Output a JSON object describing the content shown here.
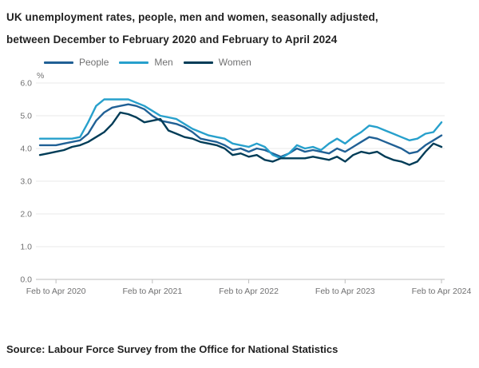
{
  "header": {
    "title_line1": "UK unemployment rates, people, men and women, seasonally adjusted,",
    "title_line2": "between December to February 2020 and February to April 2024"
  },
  "chart_data": {
    "type": "line",
    "title": "UK unemployment rates, people, men and women, seasonally adjusted, between December to February 2020 and February to April 2024",
    "ylabel": "%",
    "ylim": [
      0.0,
      6.0
    ],
    "yticks": [
      "0.0",
      "1.0",
      "2.0",
      "3.0",
      "4.0",
      "5.0",
      "6.0"
    ],
    "grid": "horizontal",
    "legend_position": "top",
    "x_description": "51 rolling three-month periods, monthly steps, from Dec to Feb 2020 through Feb to Apr 2024",
    "x_first_period": "Dec to Feb 2020",
    "x_last_period": "Feb to Apr 2024",
    "x_tick_labels": [
      "Feb to Apr 2020",
      "Feb to Apr 2021",
      "Feb to Apr 2022",
      "Feb to Apr 2023",
      "Feb to Apr 2024"
    ],
    "x_tick_indices": [
      2,
      14,
      26,
      38,
      50
    ],
    "series": [
      {
        "name": "People",
        "color": "#206095",
        "values": [
          4.1,
          4.1,
          4.1,
          4.15,
          4.2,
          4.25,
          4.45,
          4.85,
          5.1,
          5.25,
          5.3,
          5.35,
          5.3,
          5.2,
          5.0,
          4.85,
          4.8,
          4.75,
          4.65,
          4.5,
          4.3,
          4.25,
          4.2,
          4.1,
          3.95,
          4.0,
          3.9,
          4.0,
          3.95,
          3.85,
          3.75,
          3.85,
          4.0,
          3.9,
          3.95,
          3.9,
          3.85,
          4.0,
          3.9,
          4.05,
          4.2,
          4.35,
          4.3,
          4.2,
          4.1,
          4.0,
          3.85,
          3.9,
          4.1,
          4.25,
          4.4
        ]
      },
      {
        "name": "Men",
        "color": "#27A0CC",
        "values": [
          4.3,
          4.3,
          4.3,
          4.3,
          4.3,
          4.35,
          4.8,
          5.3,
          5.5,
          5.5,
          5.5,
          5.5,
          5.4,
          5.3,
          5.15,
          5.0,
          4.95,
          4.9,
          4.75,
          4.6,
          4.5,
          4.4,
          4.35,
          4.3,
          4.15,
          4.1,
          4.05,
          4.15,
          4.05,
          3.8,
          3.7,
          3.85,
          4.1,
          4.0,
          4.05,
          3.95,
          4.15,
          4.3,
          4.15,
          4.35,
          4.5,
          4.7,
          4.65,
          4.55,
          4.45,
          4.35,
          4.25,
          4.3,
          4.45,
          4.5,
          4.8
        ]
      },
      {
        "name": "Women",
        "color": "#003C57",
        "values": [
          3.8,
          3.85,
          3.9,
          3.95,
          4.05,
          4.1,
          4.2,
          4.35,
          4.5,
          4.75,
          5.1,
          5.05,
          4.95,
          4.8,
          4.85,
          4.9,
          4.55,
          4.45,
          4.35,
          4.3,
          4.2,
          4.15,
          4.1,
          4.0,
          3.8,
          3.85,
          3.75,
          3.8,
          3.65,
          3.6,
          3.7,
          3.7,
          3.7,
          3.7,
          3.75,
          3.7,
          3.65,
          3.75,
          3.6,
          3.8,
          3.9,
          3.85,
          3.9,
          3.75,
          3.65,
          3.6,
          3.5,
          3.6,
          3.9,
          4.15,
          4.05
        ]
      }
    ]
  },
  "source": {
    "text": "Source: Labour Force Survey from the Office for National Statistics"
  }
}
